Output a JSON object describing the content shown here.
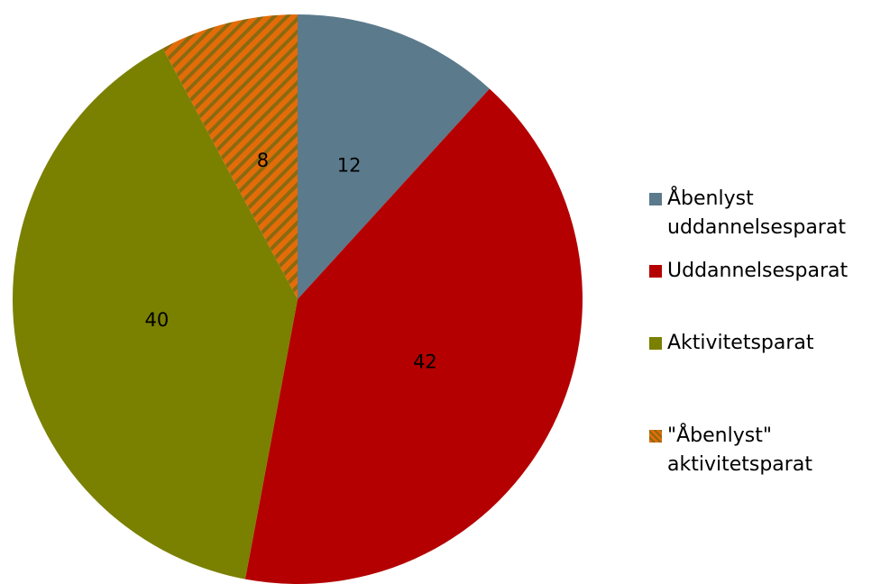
{
  "chart_data": {
    "type": "pie",
    "categories": [
      "Åbenlyst uddannelsesparat",
      "Uddannelsesparat",
      "Aktivitetsparat",
      "\"Åbenlyst\" aktivitetsparat"
    ],
    "values": [
      12,
      42,
      40,
      8
    ],
    "colors": [
      "#5b7a8c",
      "#b40000",
      "#7a8000",
      "#e36c09"
    ],
    "hatched": [
      false,
      false,
      false,
      true
    ],
    "legend": "right"
  }
}
